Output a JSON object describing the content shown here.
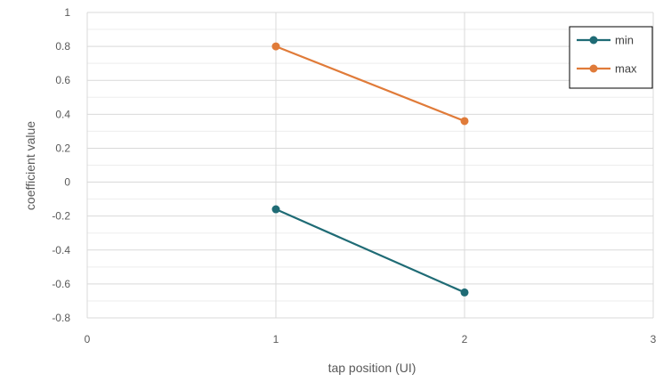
{
  "chart_data": {
    "type": "line",
    "xlabel": "tap position (UI)",
    "ylabel": "coefficient value",
    "xlim": [
      0,
      3
    ],
    "ylim": [
      -0.8,
      1
    ],
    "xticks": [
      0,
      1,
      2,
      3
    ],
    "yticks": [
      -0.8,
      -0.6,
      -0.4,
      -0.2,
      0,
      0.2,
      0.4,
      0.6,
      0.8,
      1
    ],
    "ytick_labels": [
      "-0.8",
      "-0.6",
      "-0.4",
      "-0.2",
      "0",
      "0.2",
      "0.4",
      "0.6",
      "0.8",
      "1"
    ],
    "grid": true,
    "legend_position": "top-right",
    "series": [
      {
        "name": "min",
        "color": "#1f6b75",
        "x": [
          1,
          2
        ],
        "y": [
          -0.16,
          -0.65
        ]
      },
      {
        "name": "max",
        "color": "#e07b39",
        "x": [
          1,
          2
        ],
        "y": [
          0.8,
          0.36
        ]
      }
    ]
  }
}
